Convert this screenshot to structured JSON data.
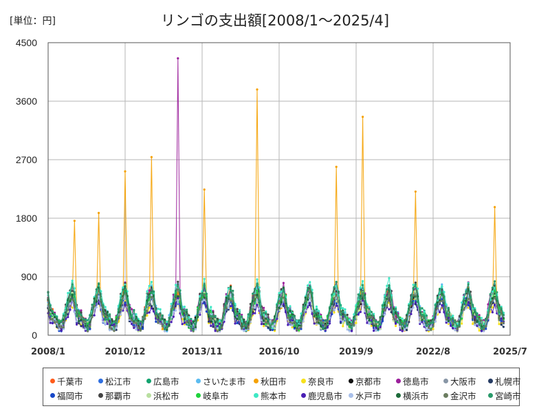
{
  "unit_label": "[単位：円]",
  "chart_data": {
    "type": "line",
    "title": "リンゴの支出額[2008/1～2025/4]",
    "xlabel": "",
    "ylabel": "",
    "ylim": [
      0,
      4500
    ],
    "yticks": [
      0,
      900,
      1800,
      2700,
      3600,
      4500
    ],
    "x_range": [
      "2008/1",
      "2025/7"
    ],
    "xticks": [
      "2008/1",
      "2010/12",
      "2013/11",
      "2016/10",
      "2019/9",
      "2022/8",
      "2025/7"
    ],
    "grid": true,
    "legend_position": "bottom",
    "series": [
      {
        "name": "千葉市",
        "color": "#ff5b1a"
      },
      {
        "name": "松江市",
        "color": "#2f6fe0"
      },
      {
        "name": "広島市",
        "color": "#13a36f"
      },
      {
        "name": "さいたま市",
        "color": "#5cbcf0"
      },
      {
        "name": "秋田市",
        "color": "#f5a100"
      },
      {
        "name": "奈良市",
        "color": "#f7e11b"
      },
      {
        "name": "京都市",
        "color": "#111111"
      },
      {
        "name": "徳島市",
        "color": "#9b1f9b"
      },
      {
        "name": "大阪市",
        "color": "#8896a6"
      },
      {
        "name": "札幌市",
        "color": "#253b63"
      },
      {
        "name": "福岡市",
        "color": "#1848c8"
      },
      {
        "name": "那覇市",
        "color": "#444444"
      },
      {
        "name": "浜松市",
        "color": "#b9dfa0"
      },
      {
        "name": "岐阜市",
        "color": "#1fd23c"
      },
      {
        "name": "熊本市",
        "color": "#3ee8c4"
      },
      {
        "name": "鹿児島市",
        "color": "#4a1fb4"
      },
      {
        "name": "水戸市",
        "color": "#a9c0ea"
      },
      {
        "name": "横浜市",
        "color": "#1d6b3a"
      },
      {
        "name": "金沢市",
        "color": "#6b7d60"
      },
      {
        "name": "宮崎市",
        "color": "#2a9a6a"
      }
    ],
    "notable_peaks": [
      {
        "series": "秋田市",
        "x": "2009/1",
        "y": 1760
      },
      {
        "series": "秋田市",
        "x": "2009/12",
        "y": 1880
      },
      {
        "series": "秋田市",
        "x": "2010/12",
        "y": 2520
      },
      {
        "series": "秋田市",
        "x": "2011/12",
        "y": 2740
      },
      {
        "series": "徳島市",
        "x": "2012/12",
        "y": 4260
      },
      {
        "series": "秋田市",
        "x": "2013/12",
        "y": 2240
      },
      {
        "series": "秋田市",
        "x": "2015/12",
        "y": 3780
      },
      {
        "series": "秋田市",
        "x": "2018/12",
        "y": 2590
      },
      {
        "series": "秋田市",
        "x": "2019/12",
        "y": 3360
      },
      {
        "series": "秋田市",
        "x": "2021/12",
        "y": 2210
      },
      {
        "series": "秋田市",
        "x": "2024/12",
        "y": 1970
      }
    ]
  }
}
